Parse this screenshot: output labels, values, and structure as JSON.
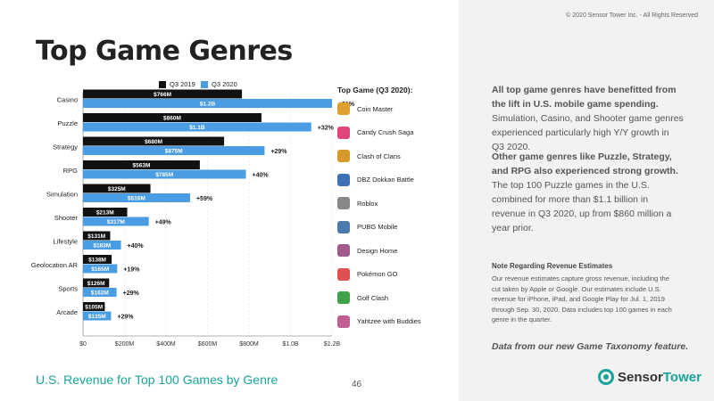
{
  "title": "Top Game Genres",
  "copyright": "© 2020 Sensor Tower Inc. - All Rights Reserved",
  "subtitle": "U.S. Revenue for Top 100 Games by Genre",
  "page_number": "46",
  "colors": {
    "q3_2019": "#111111",
    "q3_2020": "#4a9de3",
    "accent": "#1aa39a"
  },
  "legend": {
    "q3_2019": "Q3 2019",
    "q3_2020": "Q3 2020"
  },
  "top_games": {
    "header": "Top Game (Q3 2020):",
    "items": [
      {
        "name": "Coin Master",
        "icon": "coin-master-icon"
      },
      {
        "name": "Candy Crush Saga",
        "icon": "candy-crush-icon"
      },
      {
        "name": "Clash of Clans",
        "icon": "clash-of-clans-icon"
      },
      {
        "name": "DBZ Dokkan Battle",
        "icon": "dokkan-battle-icon"
      },
      {
        "name": "Roblox",
        "icon": "roblox-icon"
      },
      {
        "name": "PUBG Mobile",
        "icon": "pubg-mobile-icon"
      },
      {
        "name": "Design Home",
        "icon": "design-home-icon"
      },
      {
        "name": "Pokémon GO",
        "icon": "pokemon-go-icon"
      },
      {
        "name": "Golf Clash",
        "icon": "golf-clash-icon"
      },
      {
        "name": "Yahtzee with Buddies",
        "icon": "yahtzee-icon"
      }
    ]
  },
  "right_panel": {
    "p1_bold": "All top game genres have benefitted from the lift in U.S. mobile game spending.",
    "p1_rest": " Simulation, Casino, and Shooter game genres experienced particularly high Y/Y growth in Q3 2020.",
    "p2_bold": "Other game genres like Puzzle, Strategy, and RPG also experienced strong growth.",
    "p2_rest": " The top 100 Puzzle games in the U.S. combined for more than $1.1 billion in revenue in Q3 2020, up from $860 million a year prior.",
    "note_header": "Note Regarding Revenue Estimates",
    "note_body": "Our revenue estimates capture gross revenue, including the cut taken by Apple or Google. Our estimates include U.S. revenue for iPhone, iPad, and Google Play for Jul. 1, 2019 through Sep. 30, 2020. Data includes top 100 games in each genre in the quarter.",
    "data_note": "Data from our new Game Taxonomy feature."
  },
  "logo": {
    "part1": "Sensor",
    "part2": "Tower"
  },
  "chart_data": {
    "type": "bar",
    "orientation": "horizontal",
    "categories": [
      "Casino",
      "Puzzle",
      "Strategy",
      "RPG",
      "Simulation",
      "Shooter",
      "Lifestyle",
      "Geolocation AR",
      "Sports",
      "Arcade"
    ],
    "series": [
      {
        "name": "Q3 2019",
        "values": [
          766,
          860,
          680,
          563,
          325,
          213,
          131,
          138,
          126,
          105
        ],
        "labels": [
          "$766M",
          "$860M",
          "$680M",
          "$563M",
          "$325M",
          "$213M",
          "$131M",
          "$138M",
          "$126M",
          "$105M"
        ]
      },
      {
        "name": "Q3 2020",
        "values": [
          1200,
          1100,
          875,
          785,
          516,
          317,
          183,
          165,
          162,
          135
        ],
        "labels": [
          "$1.2B",
          "$1.1B",
          "$875M",
          "$785M",
          "$516M",
          "$317M",
          "$183M",
          "$165M",
          "$162M",
          "$135M"
        ]
      }
    ],
    "growth": [
      "+51%",
      "+32%",
      "+29%",
      "+40%",
      "+59%",
      "+49%",
      "+40%",
      "+19%",
      "+29%",
      "+29%"
    ],
    "xlim": [
      0,
      1200
    ],
    "xticks": [
      0,
      200,
      400,
      600,
      800,
      1000,
      1200
    ],
    "xtick_labels": [
      "$0",
      "$200M",
      "$400M",
      "$600M",
      "$800M",
      "$1.0B",
      "$1.2B"
    ],
    "unit": "USD millions"
  }
}
